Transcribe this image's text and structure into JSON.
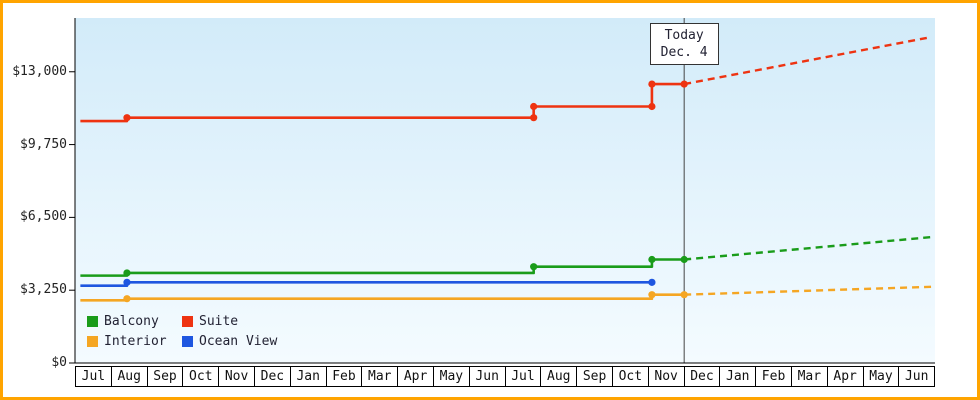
{
  "frame": {
    "border_color": "#ffa400"
  },
  "chart_data": {
    "type": "line",
    "x_categories": [
      "Jul",
      "Aug",
      "Sep",
      "Oct",
      "Nov",
      "Dec",
      "Jan",
      "Feb",
      "Mar",
      "Apr",
      "May",
      "Jun",
      "Jul",
      "Aug",
      "Sep",
      "Oct",
      "Nov",
      "Dec",
      "Jan",
      "Feb",
      "Mar",
      "Apr",
      "May",
      "Jun"
    ],
    "y_axis": {
      "max": 15400,
      "ticks": [
        {
          "value": 0,
          "label": "$0"
        },
        {
          "value": 3250,
          "label": "$3,250"
        },
        {
          "value": 6500,
          "label": "$6,500"
        },
        {
          "value": 9750,
          "label": "$9,750"
        },
        {
          "value": 13000,
          "label": "$13,000"
        }
      ]
    },
    "today": {
      "line1": "Today",
      "line2": "Dec. 4",
      "month_index": 17
    },
    "legend": [
      {
        "id": "balcony",
        "label": "Balcony",
        "color": "#1a9c1a"
      },
      {
        "id": "suite",
        "label": "Suite",
        "color": "#ee3311"
      },
      {
        "id": "interior",
        "label": "Interior",
        "color": "#f5a623"
      },
      {
        "id": "ocean-view",
        "label": "Ocean View",
        "color": "#1e56e0"
      }
    ],
    "series": [
      {
        "id": "interior",
        "name": "Interior",
        "color": "#f5a623",
        "solid": [
          [
            0.15,
            2800
          ],
          [
            1.45,
            2800
          ],
          [
            1.45,
            2870
          ],
          [
            16.1,
            2870
          ],
          [
            16.1,
            3050
          ],
          [
            17,
            3050
          ]
        ],
        "dashed": [
          [
            17,
            3050
          ],
          [
            23.9,
            3400
          ]
        ],
        "dots": [
          [
            1.45,
            2870
          ],
          [
            16.1,
            3050
          ],
          [
            17,
            3050
          ]
        ]
      },
      {
        "id": "ocean-view",
        "name": "Ocean View",
        "color": "#1e56e0",
        "solid": [
          [
            0.15,
            3450
          ],
          [
            1.45,
            3450
          ],
          [
            1.45,
            3600
          ],
          [
            16.1,
            3600
          ]
        ],
        "dashed": [],
        "dots": [
          [
            1.45,
            3600
          ],
          [
            16.1,
            3600
          ]
        ]
      },
      {
        "id": "balcony",
        "name": "Balcony",
        "color": "#1a9c1a",
        "solid": [
          [
            0.15,
            3900
          ],
          [
            1.45,
            3900
          ],
          [
            1.45,
            4020
          ],
          [
            12.8,
            4020
          ],
          [
            12.8,
            4300
          ],
          [
            16.1,
            4300
          ],
          [
            16.1,
            4620
          ],
          [
            17,
            4620
          ]
        ],
        "dashed": [
          [
            17,
            4620
          ],
          [
            23.9,
            5620
          ]
        ],
        "dots": [
          [
            1.45,
            4020
          ],
          [
            12.8,
            4300
          ],
          [
            16.1,
            4620
          ],
          [
            17,
            4620
          ]
        ]
      },
      {
        "id": "suite",
        "name": "Suite",
        "color": "#ee3311",
        "solid": [
          [
            0.15,
            10800
          ],
          [
            1.45,
            10800
          ],
          [
            1.45,
            10950
          ],
          [
            12.8,
            10950
          ],
          [
            12.8,
            11450
          ],
          [
            16.1,
            11450
          ],
          [
            16.1,
            12450
          ],
          [
            17,
            12450
          ]
        ],
        "dashed": [
          [
            17,
            12450
          ],
          [
            23.9,
            14550
          ]
        ],
        "dots": [
          [
            1.45,
            10950
          ],
          [
            12.8,
            10950
          ],
          [
            12.8,
            11450
          ],
          [
            16.1,
            11450
          ],
          [
            16.1,
            12450
          ],
          [
            17,
            12450
          ]
        ]
      }
    ]
  }
}
